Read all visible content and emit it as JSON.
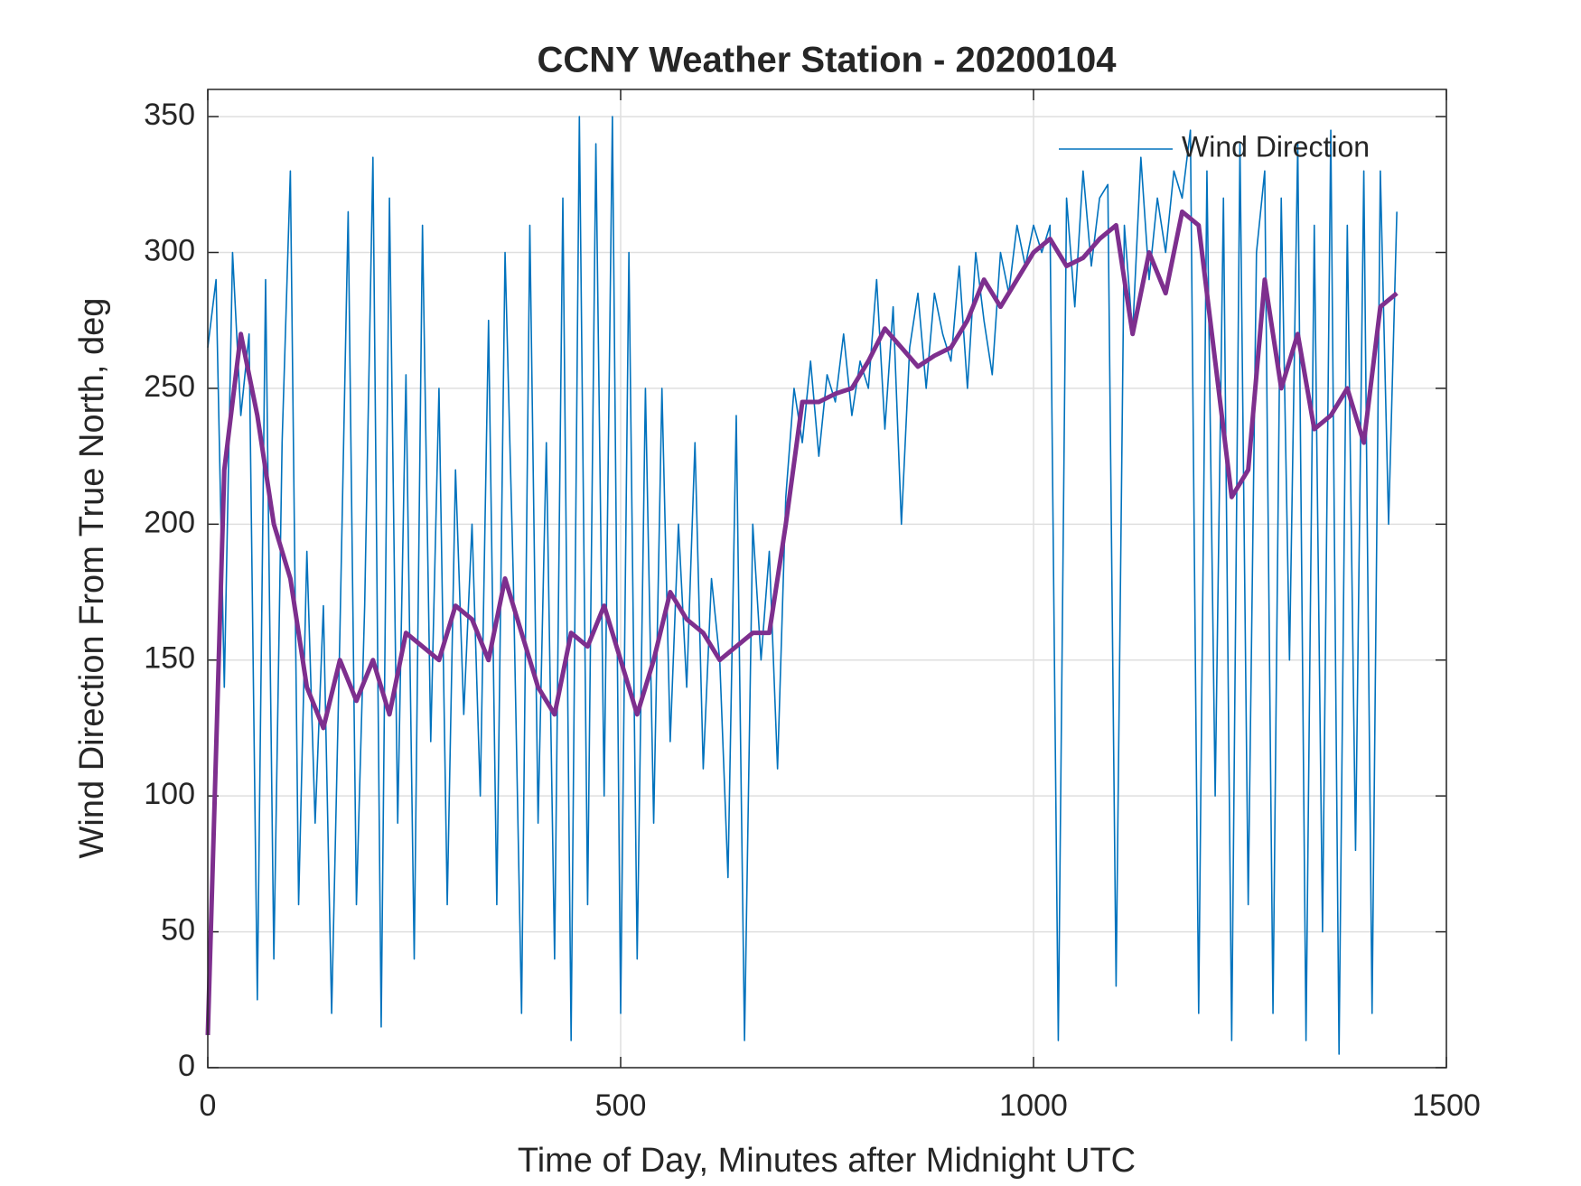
{
  "chart_data": {
    "type": "line",
    "title": "CCNY Weather Station - 20200104",
    "xlabel": "Time of Day, Minutes after Midnight UTC",
    "ylabel": "Wind Direction From True North, deg",
    "xlim": [
      0,
      1500
    ],
    "ylim": [
      0,
      360
    ],
    "xticks": [
      0,
      500,
      1000,
      1500
    ],
    "yticks": [
      0,
      50,
      100,
      150,
      200,
      250,
      300,
      350
    ],
    "grid": true,
    "legend": "northeast",
    "series": [
      {
        "name": "Wind Direction",
        "color": "#0072BD",
        "x": [
          0,
          10,
          20,
          30,
          40,
          50,
          60,
          70,
          80,
          90,
          100,
          110,
          120,
          130,
          140,
          150,
          160,
          170,
          180,
          190,
          200,
          210,
          220,
          230,
          240,
          250,
          260,
          270,
          280,
          290,
          300,
          310,
          320,
          330,
          340,
          350,
          360,
          370,
          380,
          390,
          400,
          410,
          420,
          430,
          440,
          450,
          460,
          470,
          480,
          490,
          500,
          510,
          520,
          530,
          540,
          550,
          560,
          570,
          580,
          590,
          600,
          610,
          620,
          630,
          640,
          650,
          660,
          670,
          680,
          690,
          700,
          710,
          720,
          730,
          740,
          750,
          760,
          770,
          780,
          790,
          800,
          810,
          820,
          830,
          840,
          850,
          860,
          870,
          880,
          890,
          900,
          910,
          920,
          930,
          940,
          950,
          960,
          970,
          980,
          990,
          1000,
          1010,
          1020,
          1030,
          1040,
          1050,
          1060,
          1070,
          1080,
          1090,
          1100,
          1110,
          1120,
          1130,
          1140,
          1150,
          1160,
          1170,
          1180,
          1190,
          1200,
          1210,
          1220,
          1230,
          1240,
          1250,
          1260,
          1270,
          1280,
          1290,
          1300,
          1310,
          1320,
          1330,
          1340,
          1350,
          1360,
          1370,
          1380,
          1390,
          1400,
          1410,
          1420,
          1430,
          1440
        ],
        "values": [
          265,
          290,
          140,
          300,
          240,
          270,
          25,
          290,
          40,
          230,
          330,
          60,
          190,
          90,
          170,
          20,
          160,
          315,
          60,
          170,
          335,
          15,
          320,
          90,
          255,
          40,
          310,
          120,
          250,
          60,
          220,
          130,
          200,
          100,
          275,
          60,
          300,
          180,
          20,
          310,
          90,
          230,
          40,
          320,
          10,
          350,
          60,
          340,
          100,
          350,
          20,
          300,
          40,
          250,
          90,
          250,
          120,
          200,
          140,
          230,
          110,
          180,
          150,
          70,
          240,
          10,
          200,
          150,
          190,
          110,
          210,
          250,
          230,
          260,
          225,
          255,
          245,
          270,
          240,
          260,
          250,
          290,
          235,
          280,
          200,
          265,
          285,
          250,
          285,
          270,
          260,
          295,
          250,
          300,
          275,
          255,
          300,
          285,
          310,
          295,
          310,
          300,
          310,
          10,
          320,
          280,
          330,
          295,
          320,
          325,
          30,
          310,
          270,
          335,
          290,
          320,
          300,
          330,
          320,
          345,
          20,
          330,
          100,
          320,
          10,
          340,
          60,
          300,
          330,
          20,
          320,
          150,
          340,
          10,
          310,
          50,
          345,
          5,
          310,
          80,
          330,
          20,
          330,
          200,
          315
        ]
      },
      {
        "color": "#7E2F8E",
        "x": [
          0,
          20,
          40,
          60,
          80,
          100,
          120,
          140,
          160,
          180,
          200,
          220,
          240,
          260,
          280,
          300,
          320,
          340,
          360,
          380,
          400,
          420,
          440,
          460,
          480,
          500,
          520,
          540,
          560,
          580,
          600,
          620,
          640,
          660,
          680,
          700,
          720,
          740,
          760,
          780,
          800,
          820,
          840,
          860,
          880,
          900,
          920,
          940,
          960,
          980,
          1000,
          1020,
          1040,
          1060,
          1080,
          1100,
          1120,
          1140,
          1160,
          1180,
          1200,
          1220,
          1240,
          1260,
          1280,
          1300,
          1320,
          1340,
          1360,
          1380,
          1400,
          1420,
          1440
        ],
        "values": [
          12,
          220,
          270,
          240,
          200,
          180,
          140,
          125,
          150,
          135,
          150,
          130,
          160,
          155,
          150,
          170,
          165,
          150,
          180,
          160,
          140,
          130,
          160,
          155,
          170,
          150,
          130,
          150,
          175,
          165,
          160,
          150,
          155,
          160,
          160,
          200,
          245,
          245,
          248,
          250,
          260,
          272,
          265,
          258,
          262,
          265,
          275,
          290,
          280,
          290,
          300,
          305,
          295,
          298,
          305,
          310,
          270,
          300,
          285,
          315,
          310,
          260,
          210,
          220,
          290,
          250,
          270,
          235,
          240,
          250,
          230,
          280,
          285
        ]
      }
    ]
  }
}
